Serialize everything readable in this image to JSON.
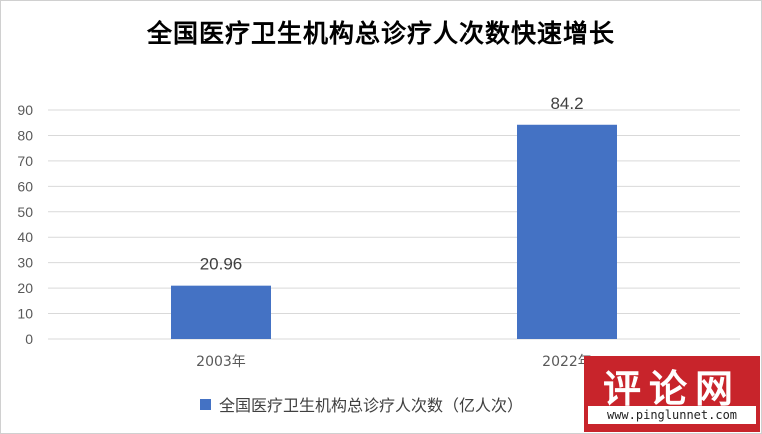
{
  "chart_data": {
    "type": "bar",
    "title": "全国医疗卫生机构总诊疗人次数快速增长",
    "categories": [
      "2003年",
      "2022年"
    ],
    "series": [
      {
        "name": "全国医疗卫生机构总诊疗人次数（亿人次）",
        "values": [
          20.96,
          84.2
        ],
        "labels": [
          "20.96",
          "84.2"
        ]
      }
    ],
    "xlabel": "",
    "ylabel": "",
    "ylim": [
      0,
      90
    ],
    "yticks": [
      0,
      10,
      20,
      30,
      40,
      50,
      60,
      70,
      80,
      90
    ],
    "grid": true,
    "legend_position": "bottom",
    "colors": {
      "bar": "#4472c4",
      "grid": "#d9d9d9"
    }
  },
  "watermark": {
    "text": "评论网",
    "url": "www.pinglunnet.com"
  }
}
